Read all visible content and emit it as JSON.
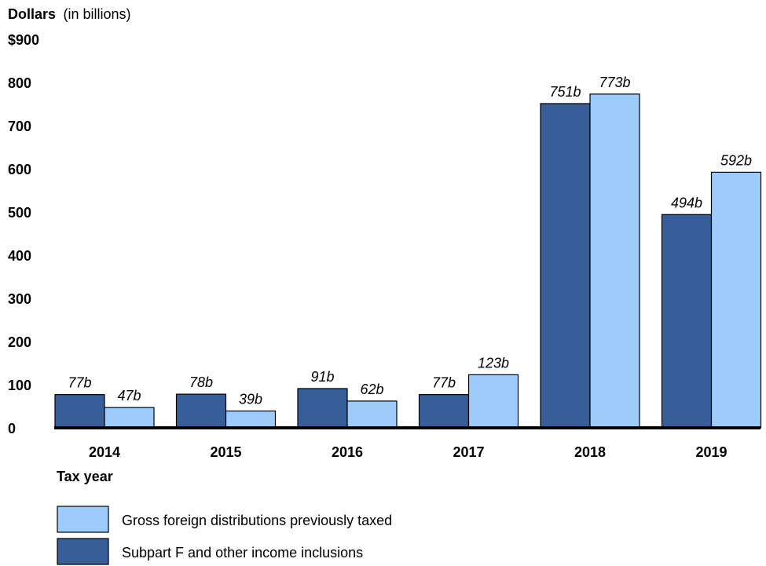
{
  "chart_data": {
    "type": "bar",
    "ylabel_main": "Dollars",
    "ylabel_unit": "(in billions)",
    "xlabel": "Tax year",
    "ylim": [
      0,
      900
    ],
    "yticks": [
      {
        "value": 900,
        "label": "$900"
      },
      {
        "value": 800,
        "label": "800"
      },
      {
        "value": 700,
        "label": "700"
      },
      {
        "value": 600,
        "label": "600"
      },
      {
        "value": 500,
        "label": "500"
      },
      {
        "value": 400,
        "label": "400"
      },
      {
        "value": 300,
        "label": "300"
      },
      {
        "value": 200,
        "label": "200"
      },
      {
        "value": 100,
        "label": "100"
      },
      {
        "value": 0,
        "label": "0"
      }
    ],
    "categories": [
      "2014",
      "2015",
      "2016",
      "2017",
      "2018",
      "2019"
    ],
    "series": [
      {
        "name": "Subpart F and other income inclusions",
        "color": "#375e98",
        "values": [
          77,
          78,
          91,
          77,
          751,
          494
        ],
        "labels": [
          "77b",
          "78b",
          "91b",
          "77b",
          "751b",
          "494b"
        ]
      },
      {
        "name": "Gross foreign distributions previously taxed",
        "color": "#9dcbfa",
        "values": [
          47,
          39,
          62,
          123,
          773,
          592
        ],
        "labels": [
          "47b",
          "39b",
          "62b",
          "123b",
          "773b",
          "592b"
        ]
      }
    ],
    "grid": false,
    "legend_position": "bottom-left",
    "legend_order": [
      1,
      0
    ]
  }
}
